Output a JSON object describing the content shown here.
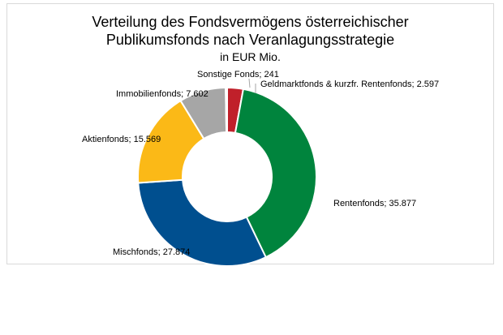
{
  "chart_data": {
    "type": "pie",
    "donut": true,
    "title_lines": [
      "Verteilung des Fondsvermögens österreichischer",
      "Publikumsfonds nach Veranlagungsstrategie"
    ],
    "subtitle": "in EUR Mio.",
    "start_angle_deg": 0,
    "legend": "none",
    "slices": [
      {
        "name": "Geldmarktfonds & kurzfr. Rentenfonds",
        "value": 2597,
        "label": "Geldmarktfonds & kurzfr. Rentenfonds; 2.597",
        "color": "#c0202a"
      },
      {
        "name": "Rentenfonds",
        "value": 35877,
        "label": "Rentenfonds; 35.877",
        "color": "#00843d"
      },
      {
        "name": "Mischfonds",
        "value": 27874,
        "label": "Mischfonds; 27.874",
        "color": "#004f8f"
      },
      {
        "name": "Aktienfonds",
        "value": 15569,
        "label": "Aktienfonds; 15.569",
        "color": "#fbb917"
      },
      {
        "name": "Immobilienfonds",
        "value": 7602,
        "label": "Immobilienfonds; 7.602",
        "color": "#a6a6a6"
      },
      {
        "name": "Sonstige Fonds",
        "value": 241,
        "label": "Sonstige Fonds; 241",
        "color": "#ffffff"
      }
    ]
  }
}
